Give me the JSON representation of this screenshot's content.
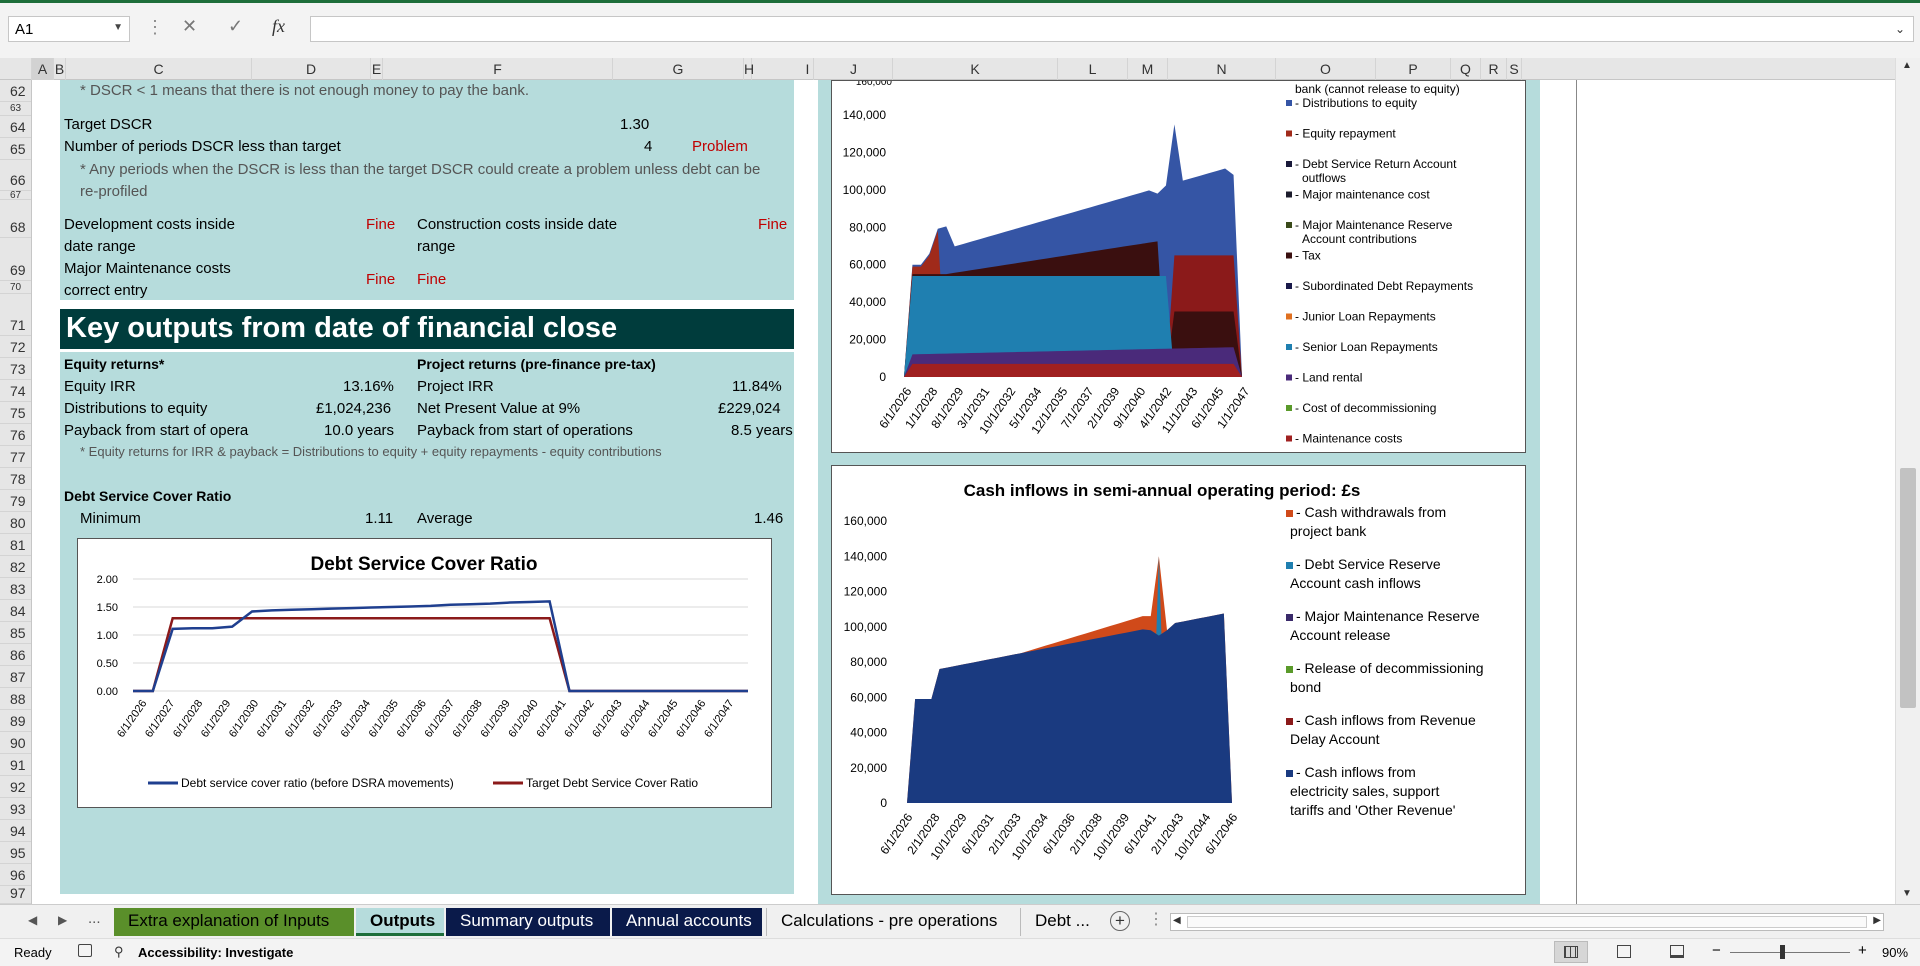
{
  "name_box": "A1",
  "formula_icons": {
    "cancel": "✕",
    "enter": "✓",
    "fx": "fx"
  },
  "columns": [
    "A",
    "B",
    "C",
    "D",
    "E",
    "F",
    "G",
    "H",
    "I",
    "J",
    "K",
    "L",
    "M",
    "N",
    "O",
    "P",
    "Q",
    "R",
    "S"
  ],
  "rows": [
    "62",
    "63",
    "64",
    "65",
    "66",
    "67",
    "68",
    "69",
    "70",
    "71",
    "72",
    "73",
    "74",
    "75",
    "76",
    "77",
    "78",
    "79",
    "80",
    "81",
    "82",
    "83",
    "84",
    "85",
    "86",
    "87",
    "88",
    "89",
    "90",
    "91",
    "92",
    "93",
    "94",
    "95",
    "96",
    "97"
  ],
  "cells": {
    "dscr_note": "* DSCR < 1 means that there is not enough money to pay the bank.",
    "target_dscr_label": "Target DSCR",
    "target_dscr_value": "1.30",
    "periods_label": "Number of periods DSCR less than target",
    "periods_value": "4",
    "periods_status": "Problem",
    "periods_note1": "* Any periods when the DSCR is less than the target DSCR could create a problem unless debt can be",
    "periods_note2": "re-profiled",
    "dev_label1": "Development costs inside",
    "dev_label2": "date range",
    "dev_status": "Fine",
    "con_label1": "Construction costs inside date",
    "con_label2": "range",
    "con_status": "Fine",
    "mm_label1": "Major Maintenance costs",
    "mm_label2": "correct entry",
    "mm_status": "Fine",
    "mm_status2": "Fine",
    "key_header": "Key outputs from date of financial close",
    "equity_header": "Equity returns*",
    "project_header": "Project returns (pre-finance pre-tax)",
    "equity_irr_label": "Equity IRR",
    "equity_irr": "13.16%",
    "project_irr_label": "Project IRR",
    "project_irr": "11.84%",
    "dist_label": "Distributions to equity",
    "dist_value": "£1,024,236",
    "npv_label": "Net Present Value at 9%",
    "npv_value": "£229,024",
    "payback_label": "Payback from start of opera",
    "payback_value": "10.0 years",
    "payback_ops_label": "Payback from start of operations",
    "payback_ops_value": "8.5 years",
    "equity_note": "* Equity returns for IRR & payback = Distributions to equity + equity repayments - equity contributions",
    "dscr_header": "Debt Service Cover Ratio",
    "min_label": "Minimum",
    "min_value": "1.11",
    "avg_label": "Average",
    "avg_value": "1.46"
  },
  "dscr_chart": {
    "title": "Debt Service Cover Ratio",
    "yticks": [
      "2.00",
      "1.50",
      "1.00",
      "0.50",
      "0.00"
    ],
    "xticks": [
      "6/1/2026",
      "6/1/2027",
      "6/1/2028",
      "6/1/2029",
      "6/1/2030",
      "6/1/2031",
      "6/1/2032",
      "6/1/2033",
      "6/1/2034",
      "6/1/2035",
      "6/1/2036",
      "6/1/2037",
      "6/1/2038",
      "6/1/2039",
      "6/1/2040",
      "6/1/2041",
      "6/1/2042",
      "6/1/2043",
      "6/1/2044",
      "6/1/2045",
      "6/1/2046",
      "6/1/2047"
    ],
    "legend": [
      "Debt service cover ratio (before DSRA movements)",
      "Target Debt Service Cover Ratio"
    ],
    "colors": [
      "#1f3f8f",
      "#8b1a1a"
    ]
  },
  "outflow_chart": {
    "yticks": [
      "140,000",
      "120,000",
      "100,000",
      "80,000",
      "60,000",
      "40,000",
      "20,000",
      "0"
    ],
    "xticks": [
      "6/1/2026",
      "1/1/2028",
      "8/1/2029",
      "3/1/2031",
      "10/1/2032",
      "5/1/2034",
      "12/1/2035",
      "7/1/2037",
      "2/1/2039",
      "9/1/2040",
      "4/1/2042",
      "11/1/2043",
      "6/1/2045",
      "1/1/2047"
    ],
    "legend": [
      {
        "label": "bank (cannot release to equity)",
        "color": ""
      },
      {
        "label": "- Distributions to equity",
        "color": "#3555a5"
      },
      {
        "label": "- Equity repayment",
        "color": "#a02a1a"
      },
      {
        "label": "- Debt Service Return Account outflows",
        "color": "#1a1a3a"
      },
      {
        "label": "- Major maintenance cost",
        "color": "#1c1c2c"
      },
      {
        "label": "- Major Maintenance Reserve Account contributions",
        "color": "#3a4a1a"
      },
      {
        "label": "- Tax",
        "color": "#3a0f0f"
      },
      {
        "label": "- Subordinated Debt Repayments",
        "color": "#1a1a4a"
      },
      {
        "label": "- Junior Loan Repayments",
        "color": "#e07020"
      },
      {
        "label": "- Senior Loan Repayments",
        "color": "#1f7fb0"
      },
      {
        "label": "- Land rental",
        "color": "#4a2a7a"
      },
      {
        "label": "- Cost of decommissioning",
        "color": "#5a9a2a"
      },
      {
        "label": "- Maintenance costs",
        "color": "#a02020"
      }
    ]
  },
  "inflow_chart": {
    "title": "Cash inflows in semi-annual operating period: £s",
    "yticks": [
      "160,000",
      "140,000",
      "120,000",
      "100,000",
      "80,000",
      "60,000",
      "40,000",
      "20,000",
      "0"
    ],
    "xticks": [
      "6/1/2026",
      "2/1/2028",
      "10/1/2029",
      "6/1/2031",
      "2/1/2033",
      "10/1/2034",
      "6/1/2036",
      "2/1/2038",
      "10/1/2039",
      "6/1/2041",
      "2/1/2043",
      "10/1/2044",
      "6/1/2046"
    ],
    "legend": [
      {
        "label": "- Cash withdrawals from project bank",
        "color": "#d04a1a"
      },
      {
        "label": "- Debt Service Reserve Account cash inflows",
        "color": "#1f7fb0"
      },
      {
        "label": "- Major Maintenance Reserve Account release",
        "color": "#3a2a6a"
      },
      {
        "label": "- Release of decommissioning bond",
        "color": "#5a9a2a"
      },
      {
        "label": "- Cash inflows from Revenue Delay Account",
        "color": "#8b1a1a"
      },
      {
        "label": "- Cash inflows from electricity sales, support tariffs and 'Other Revenue'",
        "color": "#1a3a80"
      }
    ]
  },
  "tabs": [
    {
      "label": "Extra explanation of Inputs",
      "bg": "#5a8f2a",
      "fg": "#000"
    },
    {
      "label": "Outputs",
      "bg": "#b6dcdc",
      "fg": "#000"
    },
    {
      "label": "Summary outputs",
      "bg": "#0a1a4a",
      "fg": "#fff"
    },
    {
      "label": "Annual accounts",
      "bg": "#0a1a4a",
      "fg": "#fff"
    },
    {
      "label": "Calculations - pre operations",
      "bg": "#f0f0f0",
      "fg": "#000"
    },
    {
      "label": "Debt ...",
      "bg": "#f0f0f0",
      "fg": "#000"
    }
  ],
  "tab_nav": {
    "prev": "◀",
    "next": "▶",
    "more": "...",
    "add": "+"
  },
  "status": {
    "ready": "Ready",
    "accessibility": "Accessibility: Investigate",
    "zoom": "90%"
  }
}
